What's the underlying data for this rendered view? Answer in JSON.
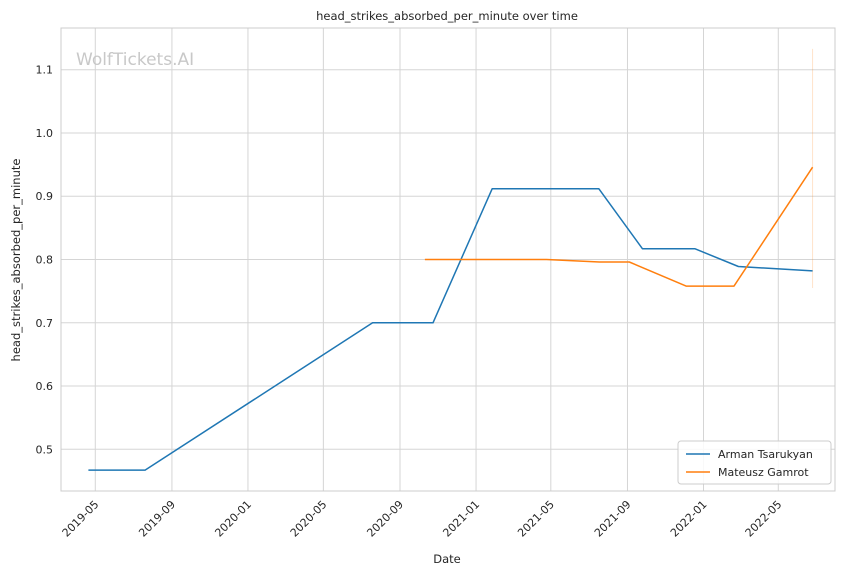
{
  "chart_data": {
    "type": "line",
    "title": "head_strikes_absorbed_per_minute over time",
    "xlabel": "Date",
    "ylabel": "head_strikes_absorbed_per_minute",
    "watermark": "WolfTickets.AI",
    "xlim": [
      "2019-03-07",
      "2022-07-31"
    ],
    "ylim": [
      0.434,
      1.166
    ],
    "x_ticks": [
      "2019-05",
      "2019-09",
      "2020-01",
      "2020-05",
      "2020-09",
      "2021-01",
      "2021-05",
      "2021-09",
      "2022-01",
      "2022-05"
    ],
    "y_ticks": [
      0.5,
      0.6,
      0.7,
      0.8,
      0.9,
      1.0,
      1.1
    ],
    "y_tick_labels": [
      "0.5",
      "0.6",
      "0.7",
      "0.8",
      "0.9",
      "1.0",
      "1.1"
    ],
    "grid": true,
    "legend_position": "bottom-right",
    "series": [
      {
        "name": "Arman Tsarukyan",
        "color": "#1f77b4",
        "points": [
          {
            "x": "2019-04-20",
            "y": 0.467
          },
          {
            "x": "2019-07-20",
            "y": 0.467
          },
          {
            "x": "2020-07-19",
            "y": 0.7
          },
          {
            "x": "2020-10-24",
            "y": 0.7
          },
          {
            "x": "2021-01-27",
            "y": 0.912
          },
          {
            "x": "2021-07-17",
            "y": 0.912
          },
          {
            "x": "2021-09-25",
            "y": 0.817
          },
          {
            "x": "2021-12-18",
            "y": 0.817
          },
          {
            "x": "2022-02-26",
            "y": 0.789
          },
          {
            "x": "2022-06-25",
            "y": 0.782
          }
        ]
      },
      {
        "name": "Mateusz Gamrot",
        "color": "#ff7f0e",
        "points": [
          {
            "x": "2020-10-11",
            "y": 0.8
          },
          {
            "x": "2021-03-20",
            "y": 0.8
          },
          {
            "x": "2021-04-24",
            "y": 0.8
          },
          {
            "x": "2021-07-18",
            "y": 0.796
          },
          {
            "x": "2021-09-04",
            "y": 0.796
          },
          {
            "x": "2021-12-04",
            "y": 0.758
          },
          {
            "x": "2022-02-19",
            "y": 0.758
          },
          {
            "x": "2022-06-25",
            "y": 0.946
          }
        ],
        "error_band": {
          "x": "2022-06-25",
          "low": 0.755,
          "high": 1.133
        }
      }
    ]
  }
}
